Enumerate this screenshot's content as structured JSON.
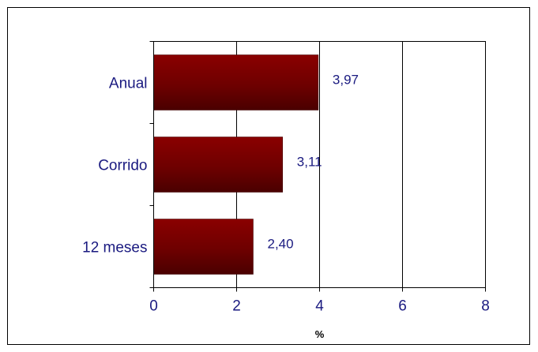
{
  "chart_data": {
    "type": "bar",
    "orientation": "horizontal",
    "categories": [
      "Anual",
      "Corrido",
      "12 meses"
    ],
    "values": [
      3.97,
      3.11,
      2.4
    ],
    "value_labels": [
      "3,97",
      "3,11",
      "2,40"
    ],
    "xlabel": "%",
    "ylabel": "",
    "xlim": [
      0,
      8
    ],
    "x_ticks": [
      0,
      2,
      4,
      6,
      8
    ],
    "grid": "vertical",
    "bar_color": "#7a0000",
    "bar_color_dark": "#4a0000",
    "text_color": "#1a1a80"
  }
}
